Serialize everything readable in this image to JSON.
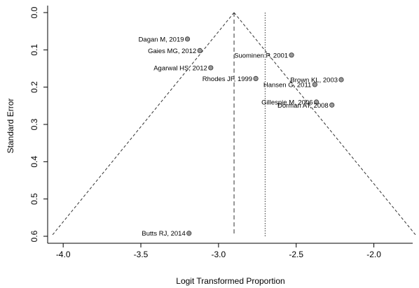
{
  "chart_data": {
    "type": "scatter",
    "subtype": "funnel-plot",
    "xlabel": "Logit Transformed Proportion",
    "ylabel": "Standard Error",
    "xlim": [
      -4.1,
      -1.75
    ],
    "ylim": [
      0.6,
      0.0
    ],
    "y_reversed": true,
    "x_ticks": [
      -4.0,
      -3.5,
      -3.0,
      -2.5,
      -2.0
    ],
    "x_tick_labels": [
      "-4.0",
      "-3.5",
      "-3.0",
      "-2.5",
      "-2.0"
    ],
    "y_ticks": [
      0.0,
      0.1,
      0.2,
      0.3,
      0.4,
      0.5,
      0.6
    ],
    "y_tick_labels": [
      "0.0",
      "0.1",
      "0.2",
      "0.3",
      "0.4",
      "0.5",
      "0.6"
    ],
    "funnel_apex_x": -2.9,
    "funnel_base_y": 0.6,
    "pooled_estimate_x": -2.9,
    "reference_line_x": -2.7,
    "points": [
      {
        "label": "Dagan M, 2019",
        "x": -3.2,
        "y": 0.071,
        "label_anchor": "end"
      },
      {
        "label": "Gaies MG, 2012",
        "x": -3.12,
        "y": 0.102,
        "label_anchor": "end"
      },
      {
        "label": "Suominen P, 2001",
        "x": -2.53,
        "y": 0.114,
        "label_anchor": "end"
      },
      {
        "label": "Agarwal HS, 2012",
        "x": -3.05,
        "y": 0.148,
        "label_anchor": "end"
      },
      {
        "label": "Rhodes JF, 1999",
        "x": -2.76,
        "y": 0.177,
        "label_anchor": "end"
      },
      {
        "label": "Brown KL, 2003",
        "x": -2.21,
        "y": 0.18,
        "label_anchor": "end"
      },
      {
        "label": "Hansen G, 2011",
        "x": -2.38,
        "y": 0.193,
        "label_anchor": "end"
      },
      {
        "label": "Gillespie M, 2006",
        "x": -2.37,
        "y": 0.24,
        "label_anchor": "end"
      },
      {
        "label": "Dorman AT, 2008",
        "x": -2.27,
        "y": 0.248,
        "label_anchor": "end"
      },
      {
        "label": "Butts RJ, 2014",
        "x": -3.19,
        "y": 0.592,
        "label_anchor": "end"
      }
    ]
  }
}
